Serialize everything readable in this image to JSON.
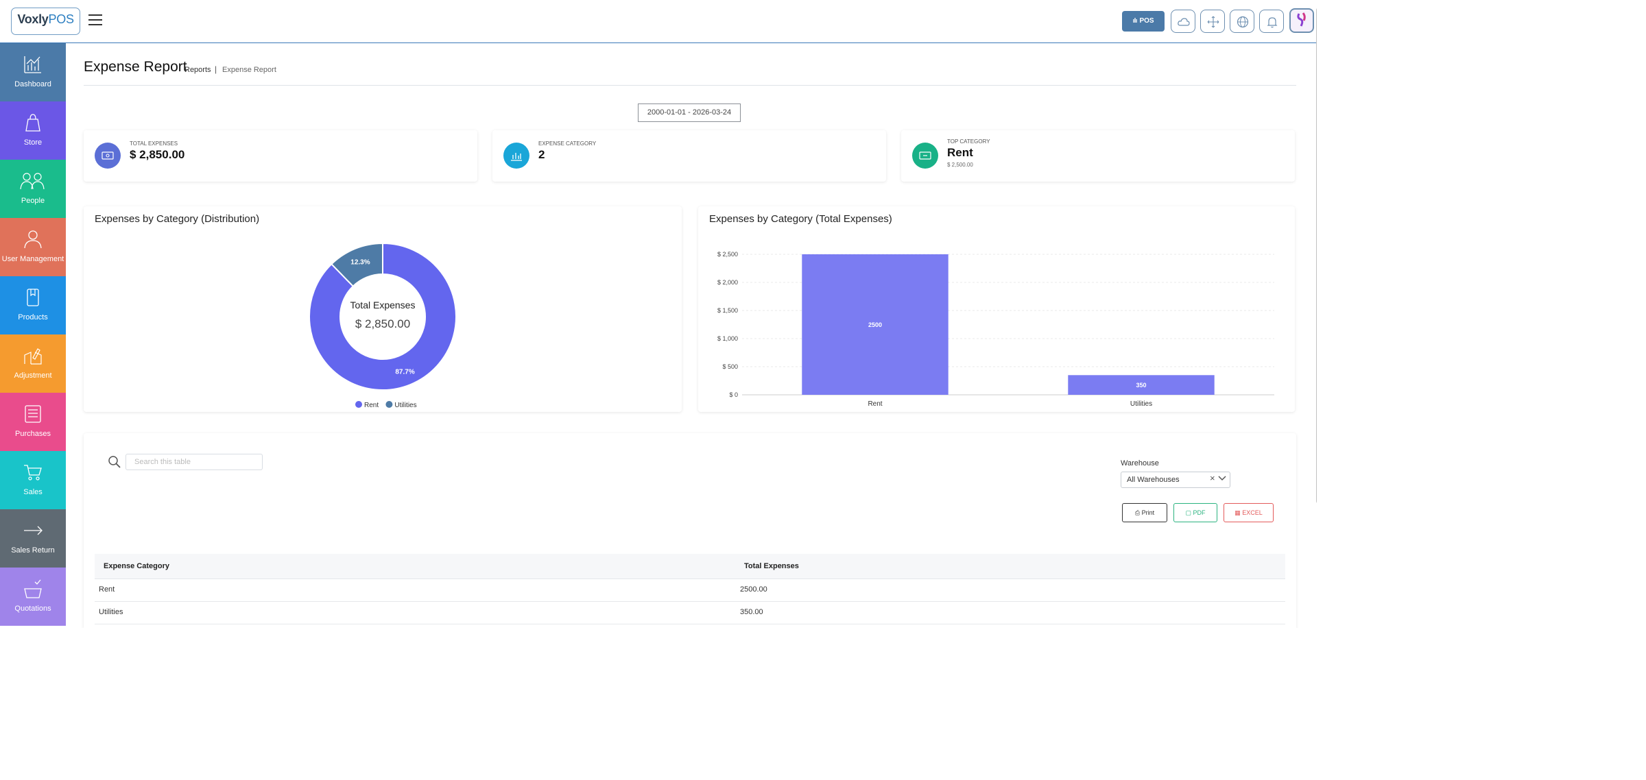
{
  "brand": {
    "name_a": "Voxly",
    "name_b": "POS",
    "tagline": ""
  },
  "header": {
    "pos_label": "POS",
    "icons": [
      "cloud-icon",
      "fullscreen-icon",
      "globe-icon",
      "bell-icon"
    ]
  },
  "sidebar": {
    "items": [
      {
        "label": "Dashboard",
        "color": "#4b7aa8"
      },
      {
        "label": "Store",
        "color": "#6b57e6"
      },
      {
        "label": "People",
        "color": "#1abc8c"
      },
      {
        "label": "User Management",
        "color": "#e0725a"
      },
      {
        "label": "Products",
        "color": "#1e90e4"
      },
      {
        "label": "Adjustment",
        "color": "#f59b2f"
      },
      {
        "label": "Purchases",
        "color": "#e94c8c"
      },
      {
        "label": "Sales",
        "color": "#19c4c9"
      },
      {
        "label": "Sales Return",
        "color": "#5f6a73"
      },
      {
        "label": "Quotations",
        "color": "#9f84ea"
      }
    ]
  },
  "page": {
    "title": "Expense Report",
    "breadcrumb": {
      "parent": "Reports",
      "separator": "|",
      "current": "Expense Report"
    },
    "date_range": "2000-01-01 - 2026-03-24"
  },
  "stats": [
    {
      "label": "TOTAL EXPENSES",
      "value": "$ 2,850.00",
      "sub": "",
      "color": "#5b6fd6"
    },
    {
      "label": "EXPENSE CATEGORY",
      "value": "2",
      "sub": "",
      "color": "#1aa6d8"
    },
    {
      "label": "TOP CATEGORY",
      "value": "Rent",
      "sub": "$ 2,500.00",
      "color": "#19b187"
    }
  ],
  "chart_data": [
    {
      "type": "pie",
      "title": "Expenses by Category (Distribution)",
      "donut": true,
      "center_label": "Total Expenses",
      "center_value": "$ 2,850.00",
      "categories": [
        "Rent",
        "Utilities"
      ],
      "values": [
        2500,
        350
      ],
      "percent_labels": [
        "87.7%",
        "12.3%"
      ],
      "colors": [
        "#6366ee",
        "#4e7ba6"
      ],
      "legend": "bottom"
    },
    {
      "type": "bar",
      "title": "Expenses by Category (Total Expenses)",
      "categories": [
        "Rent",
        "Utilities"
      ],
      "values": [
        2500,
        350
      ],
      "data_labels": [
        "2500",
        "350"
      ],
      "yticks": [
        0,
        500,
        1000,
        1500,
        2000,
        2500
      ],
      "ytick_labels": [
        "$ 0",
        "$ 500",
        "$ 1,000",
        "$ 1,500",
        "$ 2,000",
        "$ 2,500"
      ],
      "ylim": [
        0,
        2500
      ],
      "color": "#7b7cf2",
      "grid": true
    }
  ],
  "table": {
    "search_placeholder": "Search this table",
    "warehouse_label": "Warehouse",
    "warehouse_value": "All Warehouses",
    "clear_symbol": "×",
    "buttons": {
      "print": "Print",
      "pdf": "PDF",
      "excel": "EXCEL"
    },
    "columns": [
      "Expense Category",
      "Total Expenses"
    ],
    "rows": [
      [
        "Rent",
        "2500.00"
      ],
      [
        "Utilities",
        "350.00"
      ]
    ]
  }
}
